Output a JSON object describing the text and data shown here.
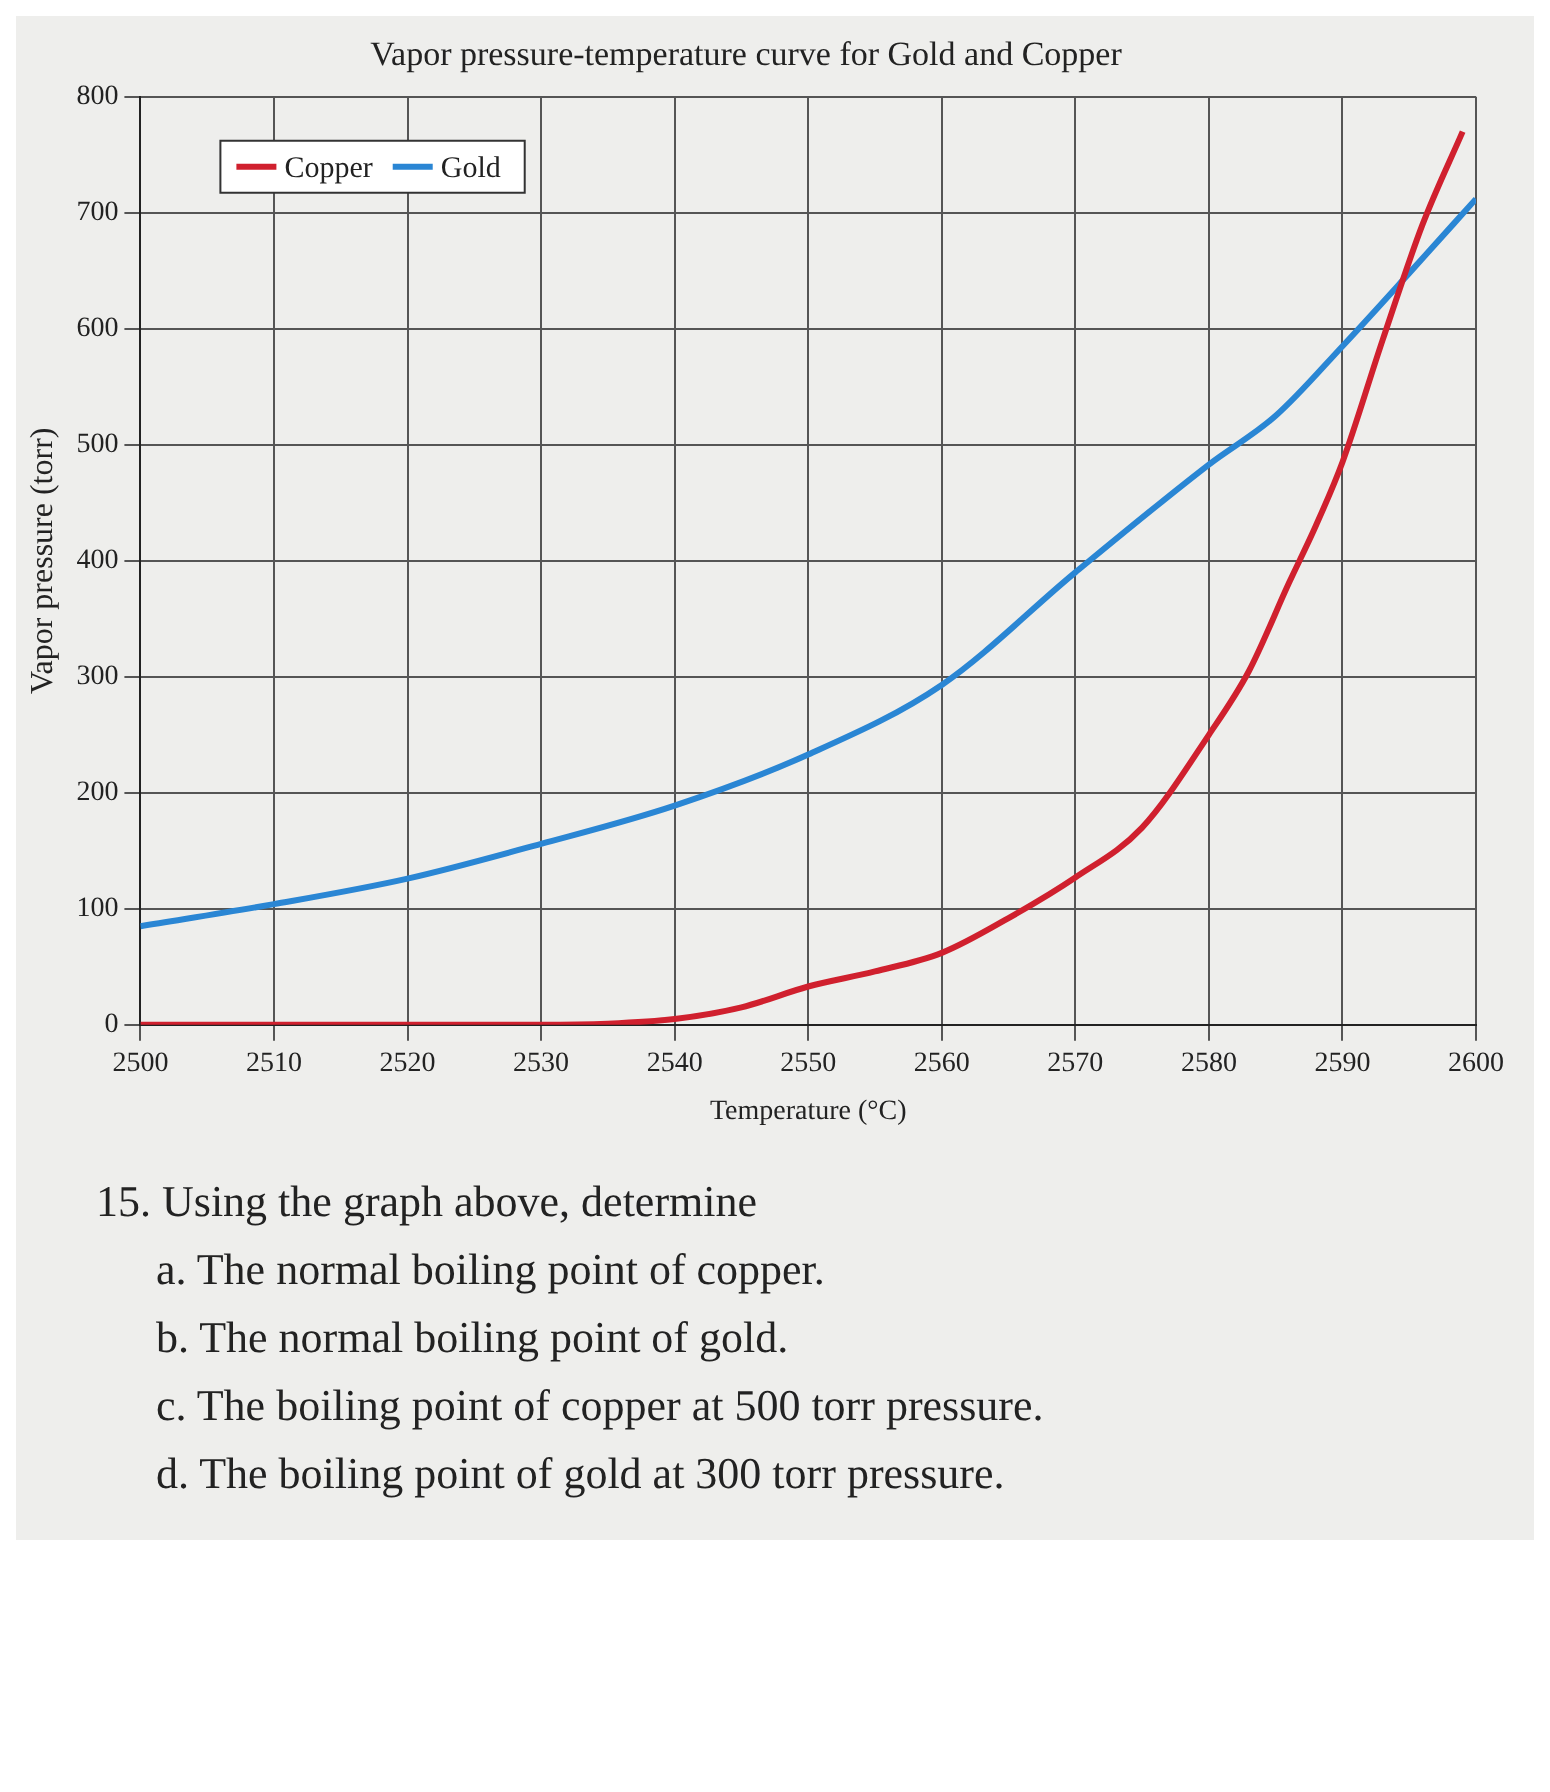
{
  "chart_data": {
    "type": "line",
    "title": "Vapor pressure-temperature curve for Gold and Copper",
    "xlabel": "Temperature (°C)",
    "ylabel": "Vapor pressure (torr)",
    "xlim": [
      2500,
      2600
    ],
    "xticks": [
      2500,
      2510,
      2520,
      2530,
      2540,
      2550,
      2560,
      2570,
      2580,
      2590,
      2600
    ],
    "ylim": [
      0,
      800
    ],
    "yticks": [
      0,
      100,
      200,
      300,
      400,
      500,
      600,
      700,
      800
    ],
    "grid": true,
    "legend": "top left",
    "marker": "none",
    "line_style": "solid",
    "series": [
      {
        "name": "Copper",
        "color": "#d0202e",
        "x": [
          2500,
          2510,
          2520,
          2530,
          2535,
          2540,
          2545,
          2550,
          2555,
          2560,
          2565,
          2570,
          2575,
          2580,
          2583,
          2586,
          2588,
          2590,
          2593,
          2596,
          2599
        ],
        "values": [
          0,
          0,
          0,
          0,
          1,
          5,
          15,
          33,
          46,
          62,
          92,
          127,
          170,
          250,
          305,
          381,
          430,
          485,
          590,
          690,
          770
        ]
      },
      {
        "name": "Gold",
        "color": "#2a86d4",
        "x": [
          2500,
          2510,
          2520,
          2530,
          2540,
          2550,
          2560,
          2570,
          2580,
          2585,
          2590,
          2595,
          2600
        ],
        "values": [
          85,
          104,
          126,
          156,
          189,
          233,
          293,
          390,
          483,
          525,
          585,
          648,
          712
        ]
      }
    ],
    "annotations": [
      "15. Using the graph above, determine",
      "a. The normal boiling point of copper.",
      "b. The normal boiling point of gold.",
      "c. The boiling point of copper at 500 torr pressure.",
      "d. The boiling point of gold at 300 torr pressure."
    ]
  }
}
